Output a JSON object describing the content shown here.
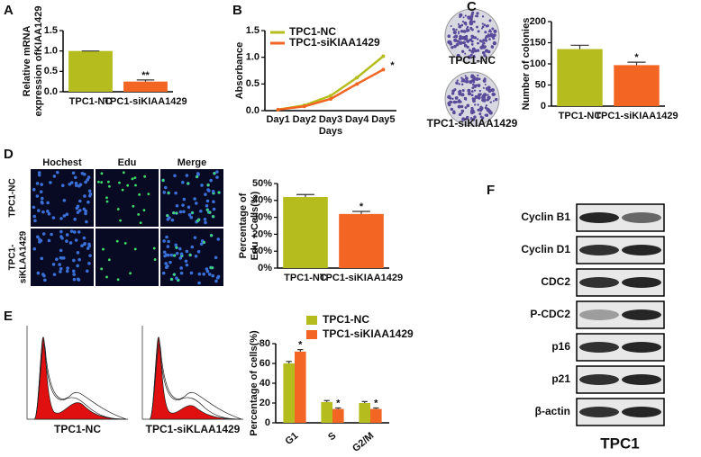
{
  "chart_data": [
    {
      "type": "bar",
      "panel_label": "A",
      "ylabel": [
        "Relative mRNA",
        "expression ofKIAA1429"
      ],
      "categories": [
        "TPC1-NC",
        "TPC1-siKIAA1429"
      ],
      "values": [
        1.0,
        0.25
      ],
      "errors": [
        0,
        0.04
      ],
      "colors": [
        "#b5bd1e",
        "#f26522"
      ],
      "ylim": [
        0,
        1.5
      ],
      "yticks": [
        {
          "value": 0,
          "label": "0.0"
        },
        {
          "value": 0.5,
          "label": "0.5"
        },
        {
          "value": 1,
          "label": "1.0"
        },
        {
          "value": 1.5,
          "label": "1.5"
        }
      ],
      "annotations": [
        "**"
      ]
    },
    {
      "type": "line",
      "panel_label": "B",
      "ylabel": [
        "Absorbance"
      ],
      "xlabel": "Days",
      "categories": [
        "Day1",
        "Day2",
        "Day3",
        "Day4",
        "Day5"
      ],
      "series": [
        {
          "name": "TPC1-NC",
          "color": "#b5bd1e",
          "values": [
            0.02,
            0.1,
            0.28,
            0.62,
            1.02
          ]
        },
        {
          "name": "TPC1-siKIAA1429",
          "color": "#f26522",
          "values": [
            0.02,
            0.08,
            0.22,
            0.5,
            0.77
          ]
        }
      ],
      "ylim": [
        0,
        1.5
      ],
      "yticks": [
        {
          "value": 0,
          "label": "0.0"
        },
        {
          "value": 0.5,
          "label": "0.5"
        },
        {
          "value": 1,
          "label": "1.0"
        },
        {
          "value": 1.5,
          "label": "1.5"
        }
      ],
      "annotations": [
        "*"
      ]
    },
    {
      "type": "bar",
      "panel_label": "C",
      "ylabel": [
        "Number of colonies"
      ],
      "image_labels": [
        "TPC1-NC",
        "TPC1-siKIAA1429"
      ],
      "categories": [
        "TPC1-NC",
        "TPC1-siKIAA1429"
      ],
      "values": [
        135,
        97
      ],
      "errors": [
        9,
        7
      ],
      "colors": [
        "#b5bd1e",
        "#f26522"
      ],
      "ylim": [
        0,
        200
      ],
      "yticks": [
        0,
        50,
        100,
        150,
        200
      ],
      "annotations": [
        "*"
      ]
    },
    {
      "type": "bar",
      "panel_label": "D",
      "ylabel": [
        "Percentage of",
        "Edu + Cells(%)"
      ],
      "column_headers": [
        "Hochest",
        "Edu",
        "Merge"
      ],
      "row_labels": [
        [
          "TPC1-NC"
        ],
        [
          "TPC1-",
          "siKLAA1429"
        ]
      ],
      "categories": [
        "TPC1-NC",
        "TPC1-siKIAA1429"
      ],
      "values": [
        42,
        32
      ],
      "errors": [
        1.5,
        1.5
      ],
      "colors": [
        "#b5bd1e",
        "#f26522"
      ],
      "ylim": [
        0,
        50
      ],
      "yticks": [
        {
          "value": 0,
          "label": "0%"
        },
        {
          "value": 10,
          "label": "10%"
        },
        {
          "value": 20,
          "label": "20%"
        },
        {
          "value": 30,
          "label": "30%"
        },
        {
          "value": 40,
          "label": "40%"
        },
        {
          "value": 50,
          "label": "50%"
        }
      ],
      "annotations": [
        "*"
      ]
    },
    {
      "type": "bar",
      "panel_label": "E",
      "ylabel": [
        "Percentage of cells(%)"
      ],
      "image_labels": [
        "TPC1-NC",
        "TPC1-siKLAA1429"
      ],
      "categories": [
        "G1",
        "S",
        "G2/M"
      ],
      "series": [
        {
          "name": "TPC1-NC",
          "color": "#b5bd1e",
          "values": [
            60,
            21,
            20
          ],
          "errors": [
            2,
            1.5,
            1.5
          ]
        },
        {
          "name": "TPC1-siKIAA1429",
          "color": "#f26522",
          "values": [
            72,
            14,
            14
          ],
          "errors": [
            2,
            1,
            1
          ]
        }
      ],
      "ylim": [
        0,
        80
      ],
      "yticks": [
        0,
        20,
        40,
        60,
        80
      ],
      "annotations": [
        "*",
        "*",
        "*"
      ]
    }
  ],
  "blot": {
    "panel_label": "F",
    "labels": [
      "Cyclin B1",
      "Cyclin D1",
      "CDC2",
      "P-CDC2",
      "p16",
      "p21",
      "β-actin"
    ],
    "cell_line": "TPC1"
  }
}
